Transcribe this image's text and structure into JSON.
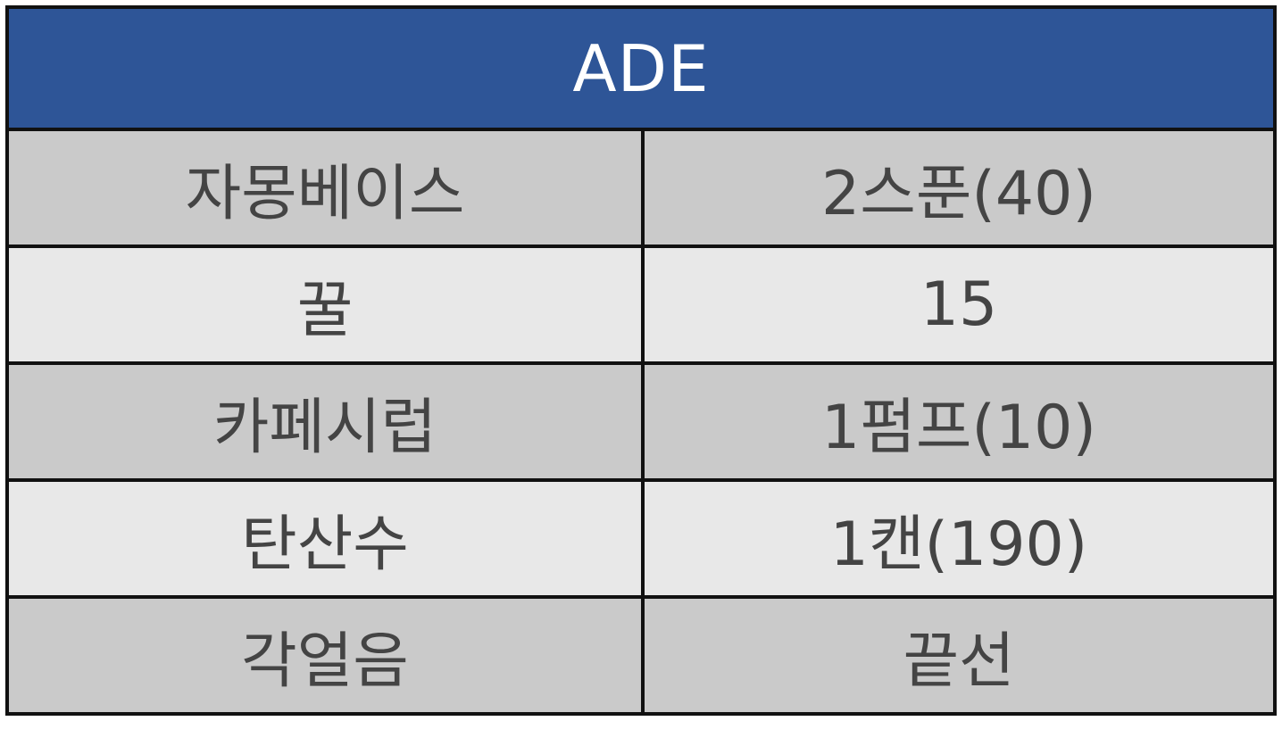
{
  "table": {
    "title": "ADE",
    "colors": {
      "header_bg": "#2e5597",
      "header_text": "#ffffff",
      "row_dark": "#cacaca",
      "row_light": "#e8e8e8",
      "text": "#444444",
      "border": "#111111"
    },
    "rows": [
      {
        "ingredient": "자몽베이스",
        "amount": "2스푼(40)"
      },
      {
        "ingredient": "꿀",
        "amount": "15"
      },
      {
        "ingredient": "카페시럽",
        "amount": "1펌프(10)"
      },
      {
        "ingredient": "탄산수",
        "amount": "1캔(190)"
      },
      {
        "ingredient": "각얼음",
        "amount": "끝선"
      }
    ]
  }
}
